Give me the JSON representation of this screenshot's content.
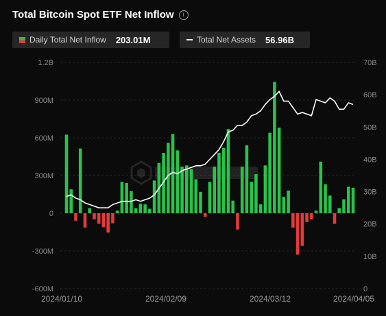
{
  "header": {
    "title": "Total Bitcoin Spot ETF Net Inflow",
    "info_icon": "info-circle-icon"
  },
  "legend": {
    "inflow": {
      "label": "Daily Total Net Inflow",
      "value": "203.01M",
      "colors": {
        "positive": "#29c24a",
        "negative": "#e33b3b"
      }
    },
    "assets": {
      "label": "Total Net Assets",
      "value": "56.96B",
      "color": "#ffffff"
    }
  },
  "chart_data": {
    "type": "bar",
    "x_ticks": [
      "2024/01/10",
      "2024/02/09",
      "2024/03/12",
      "2024/04/05"
    ],
    "y_left": {
      "ticks": [
        "1.2B",
        "900M",
        "600M",
        "300M",
        "0",
        "-300M",
        "-600M"
      ],
      "range": [
        -600,
        1200
      ],
      "unit": "M"
    },
    "y_right": {
      "ticks": [
        "70B",
        "60B",
        "50B",
        "40B",
        "30B",
        "20B",
        "10B",
        "0"
      ],
      "range": [
        0,
        70
      ],
      "unit": "B"
    },
    "grid": true,
    "series": [
      {
        "name": "Daily Total Net Inflow",
        "kind": "bar",
        "axis": "left",
        "values": [
          625,
          190,
          -60,
          515,
          -115,
          40,
          -50,
          -85,
          -110,
          -155,
          -80,
          20,
          250,
          240,
          175,
          40,
          75,
          70,
          35,
          260,
          400,
          480,
          560,
          630,
          500,
          370,
          380,
          350,
          270,
          170,
          -30,
          250,
          370,
          480,
          520,
          670,
          100,
          -130,
          370,
          540,
          250,
          310,
          70,
          380,
          640,
          1045,
          680,
          130,
          180,
          -115,
          -330,
          -260,
          -70,
          -50,
          20,
          410,
          230,
          140,
          -85,
          40,
          110,
          210,
          203
        ]
      },
      {
        "name": "Total Net Assets",
        "kind": "line",
        "axis": "right",
        "values": [
          28.5,
          29.0,
          28.0,
          27.5,
          26.5,
          26.0,
          25.5,
          25.0,
          25.0,
          25.0,
          26.0,
          26.5,
          27.0,
          27.0,
          27.0,
          27.5,
          27.0,
          27.5,
          28.0,
          29.0,
          31.0,
          33.0,
          35.0,
          36.0,
          35.5,
          36.5,
          37.0,
          37.5,
          38.0,
          38.0,
          38.5,
          40.0,
          41.5,
          43.0,
          45.5,
          48.5,
          49.0,
          50.5,
          50.5,
          51.5,
          53.5,
          54.0,
          55.0,
          57.0,
          58.5,
          59.5,
          61.0,
          58.0,
          58.0,
          56.0,
          54.0,
          54.5,
          54.0,
          53.5,
          58.5,
          58.0,
          57.5,
          59.0,
          58.0,
          55.5,
          55.5,
          57.5,
          56.96
        ]
      }
    ]
  }
}
